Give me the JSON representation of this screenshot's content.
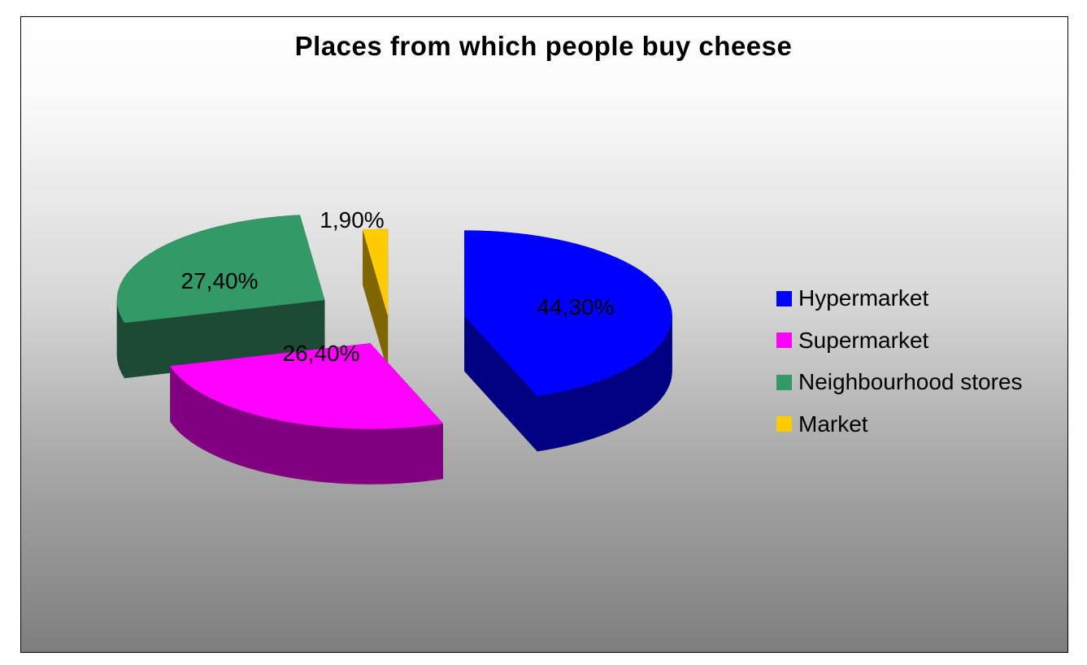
{
  "chart_data": {
    "type": "pie",
    "style": "3d-exploded",
    "title": "Places from which people buy cheese",
    "categories": [
      "Hypermarket",
      "Supermarket",
      "Neighbourhood stores",
      "Market"
    ],
    "values": [
      44.3,
      26.4,
      27.4,
      1.9
    ],
    "labels": [
      "44,30%",
      "26,40%",
      "27,40%",
      "1,90%"
    ],
    "colors": [
      "#0000ff",
      "#ff00ff",
      "#339966",
      "#ffcc00"
    ],
    "side_colors": [
      "#000080",
      "#800080",
      "#1c4a35",
      "#806600"
    ],
    "legend_position": "right"
  }
}
